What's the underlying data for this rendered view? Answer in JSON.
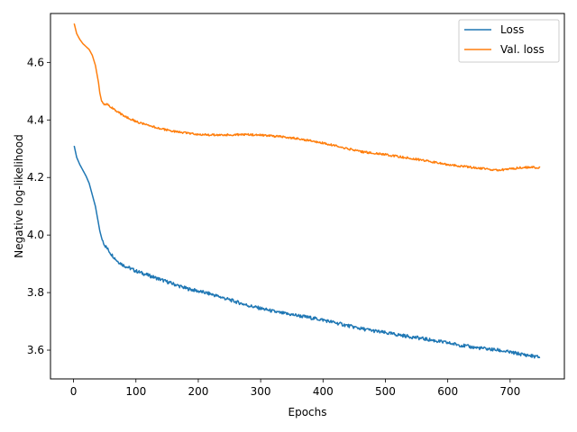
{
  "chart_data": {
    "type": "line",
    "title": "",
    "xlabel": "Epochs",
    "ylabel": "Negative log-likelihood",
    "xlim": [
      -37,
      787
    ],
    "ylim": [
      3.5,
      4.77
    ],
    "x_ticks": [
      0,
      100,
      200,
      300,
      400,
      500,
      600,
      700
    ],
    "y_ticks": [
      3.6,
      3.8,
      4.0,
      4.2,
      4.4,
      4.6
    ],
    "grid": false,
    "legend_position": "upper right",
    "series": [
      {
        "name": "Loss",
        "color": "#1f77b4",
        "x": [
          1,
          5,
          10,
          15,
          20,
          25,
          30,
          35,
          40,
          42,
          45,
          48,
          50,
          55,
          60,
          70,
          80,
          90,
          100,
          120,
          140,
          160,
          180,
          200,
          220,
          250,
          280,
          300,
          330,
          360,
          400,
          430,
          460,
          500,
          530,
          560,
          600,
          640,
          680,
          720,
          748
        ],
        "y": [
          4.31,
          4.27,
          4.245,
          4.225,
          4.205,
          4.18,
          4.14,
          4.1,
          4.04,
          4.015,
          3.99,
          3.975,
          3.965,
          3.95,
          3.935,
          3.91,
          3.895,
          3.885,
          3.875,
          3.86,
          3.845,
          3.83,
          3.815,
          3.805,
          3.795,
          3.775,
          3.755,
          3.745,
          3.73,
          3.72,
          3.705,
          3.69,
          3.675,
          3.66,
          3.65,
          3.64,
          3.625,
          3.61,
          3.6,
          3.585,
          3.575
        ]
      },
      {
        "name": "Val. loss",
        "color": "#ff7f0e",
        "x": [
          1,
          5,
          10,
          15,
          20,
          25,
          30,
          35,
          40,
          42,
          45,
          48,
          50,
          55,
          60,
          70,
          80,
          90,
          100,
          120,
          140,
          160,
          180,
          200,
          220,
          250,
          280,
          300,
          330,
          360,
          400,
          430,
          460,
          500,
          530,
          560,
          600,
          640,
          680,
          720,
          748
        ],
        "y": [
          4.735,
          4.7,
          4.68,
          4.665,
          4.655,
          4.645,
          4.625,
          4.59,
          4.53,
          4.495,
          4.465,
          4.455,
          4.455,
          4.455,
          4.445,
          4.43,
          4.415,
          4.405,
          4.395,
          4.38,
          4.37,
          4.36,
          4.355,
          4.35,
          4.348,
          4.348,
          4.35,
          4.347,
          4.342,
          4.335,
          4.32,
          4.305,
          4.29,
          4.28,
          4.27,
          4.26,
          4.245,
          4.235,
          4.225,
          4.235,
          4.235
        ]
      }
    ]
  }
}
